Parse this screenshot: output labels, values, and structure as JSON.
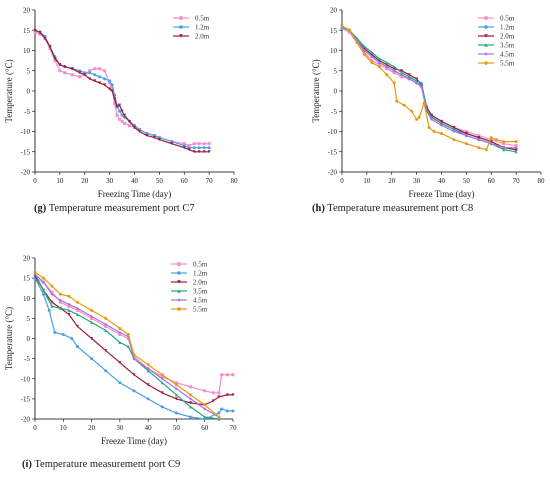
{
  "chart_data": [
    {
      "type": "line",
      "caption_tag": "(g)",
      "caption_text": "Temperature measurement port C7",
      "xlabel": "Freezing Time (day)",
      "ylabel": "Temperature (°C)",
      "xlim": [
        0,
        80
      ],
      "ylim": [
        -20,
        20
      ],
      "xticks": [
        0,
        10,
        20,
        30,
        40,
        50,
        60,
        70,
        80
      ],
      "yticks": [
        20,
        15,
        10,
        5,
        0,
        -5,
        -10,
        -15,
        -20
      ],
      "legend_position": "top-right",
      "series": [
        {
          "name": "0.5m",
          "color": "#f48fc8",
          "marker": "square",
          "x": [
            0,
            2,
            4,
            6,
            8,
            10,
            12,
            15,
            18,
            20,
            22,
            24,
            26,
            28,
            30,
            31,
            32,
            33,
            34,
            35,
            36,
            38,
            40,
            42,
            45,
            48,
            50,
            55,
            60,
            62,
            64,
            66,
            68,
            70
          ],
          "y": [
            14.5,
            14.0,
            13.0,
            10.5,
            7.5,
            5.0,
            4.5,
            4.0,
            3.5,
            4.0,
            5.0,
            5.5,
            5.5,
            5.0,
            2.0,
            0.5,
            -3.0,
            -6.0,
            -7.0,
            -7.5,
            -8.0,
            -8.5,
            -9.0,
            -9.5,
            -10.5,
            -11.0,
            -11.5,
            -12.5,
            -13.0,
            -13.5,
            -13.0,
            -13.0,
            -13.0,
            -13.0
          ]
        },
        {
          "name": "1.2m",
          "color": "#4d9fe6",
          "marker": "circle",
          "x": [
            0,
            2,
            4,
            6,
            8,
            10,
            12,
            15,
            18,
            20,
            22,
            24,
            26,
            28,
            30,
            31,
            32,
            33,
            34,
            35,
            36,
            38,
            40,
            42,
            45,
            48,
            50,
            55,
            60,
            62,
            64,
            66,
            68,
            70
          ],
          "y": [
            15.0,
            14.5,
            13.5,
            11.0,
            8.5,
            6.5,
            6.0,
            5.5,
            5.0,
            4.5,
            4.5,
            4.0,
            3.5,
            3.0,
            2.5,
            1.5,
            -1.0,
            -3.5,
            -5.0,
            -6.0,
            -6.5,
            -7.5,
            -8.5,
            -9.5,
            -10.5,
            -11.0,
            -11.5,
            -12.5,
            -13.5,
            -14.0,
            -14.0,
            -14.0,
            -14.0,
            -14.0
          ]
        },
        {
          "name": "2.0m",
          "color": "#9c1d3a",
          "marker": "triangle-down",
          "x": [
            0,
            2,
            4,
            6,
            8,
            10,
            12,
            15,
            18,
            20,
            22,
            24,
            26,
            28,
            30,
            31,
            32,
            33,
            34,
            35,
            36,
            38,
            40,
            42,
            45,
            48,
            50,
            55,
            60,
            62,
            64,
            66,
            68,
            70
          ],
          "y": [
            15.0,
            14.5,
            13.0,
            11.0,
            8.0,
            6.5,
            6.0,
            5.5,
            4.5,
            4.0,
            3.0,
            2.5,
            2.0,
            1.5,
            0.5,
            0.0,
            -2.0,
            -4.0,
            -3.5,
            -5.0,
            -6.0,
            -7.5,
            -9.0,
            -10.0,
            -11.0,
            -11.5,
            -12.0,
            -13.0,
            -14.0,
            -14.5,
            -15.0,
            -15.0,
            -15.0,
            -15.0
          ]
        }
      ]
    },
    {
      "type": "line",
      "caption_tag": "(h)",
      "caption_text": "Temperature measurement port C8",
      "xlabel": "Freeze Time (day)",
      "ylabel": "Temperature (°C)",
      "xlim": [
        0,
        80
      ],
      "ylim": [
        -20,
        20
      ],
      "xticks": [
        0,
        10,
        20,
        30,
        40,
        50,
        60,
        70,
        80
      ],
      "yticks": [
        20,
        15,
        10,
        5,
        0,
        -5,
        -10,
        -15,
        -20
      ],
      "legend_position": "top-right",
      "series": [
        {
          "name": "0.5m",
          "color": "#f48fc8",
          "marker": "square",
          "x": [
            0,
            3,
            6,
            9,
            12,
            15,
            18,
            21,
            24,
            27,
            30,
            32,
            34,
            36,
            40,
            45,
            50,
            55,
            60,
            65,
            70
          ],
          "y": [
            15.5,
            14.5,
            12.0,
            9.5,
            7.5,
            6.5,
            5.5,
            4.5,
            3.5,
            3.0,
            2.0,
            1.0,
            -4.0,
            -6.0,
            -7.5,
            -9.0,
            -10.0,
            -11.0,
            -12.0,
            -13.0,
            -13.5
          ]
        },
        {
          "name": "1.2m",
          "color": "#4d9fe6",
          "marker": "circle",
          "x": [
            0,
            3,
            6,
            9,
            12,
            15,
            18,
            21,
            24,
            27,
            30,
            32,
            34,
            36,
            40,
            45,
            50,
            55,
            60,
            65,
            70
          ],
          "y": [
            15.5,
            15.0,
            12.5,
            10.0,
            8.5,
            7.0,
            6.0,
            5.0,
            4.0,
            3.0,
            2.0,
            1.5,
            -4.5,
            -6.5,
            -8.0,
            -9.5,
            -10.5,
            -11.5,
            -12.5,
            -14.0,
            -14.5
          ]
        },
        {
          "name": "2.0m",
          "color": "#9c1d3a",
          "marker": "triangle-down",
          "x": [
            0,
            3,
            6,
            9,
            12,
            15,
            18,
            21,
            24,
            27,
            30,
            32,
            34,
            36,
            40,
            45,
            50,
            55,
            60,
            65,
            70
          ],
          "y": [
            16.0,
            15.0,
            12.5,
            10.5,
            9.0,
            7.5,
            6.5,
            5.5,
            5.0,
            4.0,
            3.0,
            1.5,
            -4.0,
            -6.0,
            -7.5,
            -9.0,
            -10.5,
            -11.5,
            -12.5,
            -14.0,
            -14.5
          ]
        },
        {
          "name": "3.5m",
          "color": "#1fa882",
          "marker": "triangle-up",
          "x": [
            0,
            3,
            6,
            9,
            12,
            15,
            18,
            21,
            24,
            27,
            30,
            32,
            34,
            36,
            40,
            45,
            50,
            55,
            60,
            65,
            70
          ],
          "y": [
            16.0,
            15.0,
            13.0,
            11.0,
            9.5,
            8.0,
            7.0,
            6.0,
            4.5,
            3.5,
            2.5,
            2.0,
            -4.5,
            -6.5,
            -8.0,
            -9.5,
            -11.0,
            -12.0,
            -13.0,
            -14.5,
            -15.0
          ]
        },
        {
          "name": "4.5m",
          "color": "#b06ee0",
          "marker": "diamond",
          "x": [
            0,
            3,
            6,
            9,
            12,
            15,
            18,
            21,
            24,
            27,
            30,
            32,
            34,
            36,
            40,
            45,
            50,
            55,
            60,
            65,
            70
          ],
          "y": [
            16.0,
            15.0,
            12.5,
            10.0,
            8.5,
            7.0,
            6.0,
            5.0,
            4.0,
            3.0,
            2.0,
            1.0,
            -5.0,
            -7.0,
            -8.5,
            -10.0,
            -11.0,
            -12.0,
            -13.0,
            -14.0,
            -14.0
          ]
        },
        {
          "name": "5.5m",
          "color": "#e19c12",
          "marker": "circle",
          "x": [
            0,
            3,
            6,
            9,
            12,
            15,
            18,
            21,
            22,
            25,
            28,
            30,
            31,
            33,
            35,
            37,
            40,
            45,
            50,
            55,
            58,
            60,
            62,
            65,
            70
          ],
          "y": [
            16.0,
            15.0,
            12.0,
            9.0,
            7.0,
            6.0,
            4.0,
            2.0,
            -2.5,
            -3.5,
            -5.0,
            -7.0,
            -6.5,
            -3.0,
            -9.0,
            -10.0,
            -10.5,
            -12.0,
            -13.0,
            -14.0,
            -14.5,
            -11.5,
            -12.0,
            -12.5,
            -12.5
          ]
        }
      ]
    },
    {
      "type": "line",
      "caption_tag": "(i)",
      "caption_text": "Temperature measurement port C9",
      "xlabel": "Freeze Time (day)",
      "ylabel": "Temperature (°C)",
      "xlim": [
        0,
        70
      ],
      "ylim": [
        -20,
        20
      ],
      "xticks": [
        0,
        10,
        20,
        30,
        40,
        50,
        60,
        70
      ],
      "yticks": [
        20,
        15,
        10,
        5,
        0,
        -5,
        -10,
        -15,
        -20
      ],
      "legend_position": "top-right",
      "series": [
        {
          "name": "0.5m",
          "color": "#f48fc8",
          "marker": "square",
          "x": [
            0,
            3,
            6,
            9,
            12,
            15,
            20,
            25,
            30,
            33,
            35,
            40,
            45,
            50,
            55,
            60,
            63,
            65,
            66,
            68,
            70
          ],
          "y": [
            15.0,
            14.0,
            11.5,
            9.0,
            8.0,
            7.0,
            5.0,
            3.0,
            1.0,
            0.0,
            -4.5,
            -7.5,
            -9.5,
            -11.0,
            -12.0,
            -13.0,
            -13.5,
            -13.5,
            -9.0,
            -9.0,
            -9.0
          ]
        },
        {
          "name": "1.2m",
          "color": "#4d9fe6",
          "marker": "circle",
          "x": [
            0,
            3,
            5,
            7,
            10,
            13,
            15,
            20,
            25,
            30,
            35,
            40,
            45,
            50,
            55,
            60,
            65,
            66,
            68,
            70
          ],
          "y": [
            15.0,
            11.0,
            7.0,
            1.5,
            1.0,
            0.0,
            -2.0,
            -5.0,
            -8.0,
            -11.0,
            -13.0,
            -15.0,
            -17.0,
            -18.5,
            -19.5,
            -20.0,
            -18.5,
            -17.5,
            -18.0,
            -18.0
          ]
        },
        {
          "name": "2.0m",
          "color": "#9c1d3a",
          "marker": "triangle-down",
          "x": [
            0,
            3,
            6,
            9,
            12,
            15,
            20,
            25,
            30,
            35,
            40,
            45,
            50,
            55,
            60,
            63,
            65,
            68,
            70
          ],
          "y": [
            15.5,
            12.0,
            9.0,
            7.5,
            6.0,
            3.0,
            0.0,
            -3.0,
            -6.0,
            -9.0,
            -11.5,
            -13.5,
            -15.0,
            -16.0,
            -16.5,
            -15.5,
            -14.5,
            -14.0,
            -14.0
          ]
        },
        {
          "name": "3.5m",
          "color": "#1fa882",
          "marker": "triangle-up",
          "x": [
            0,
            3,
            6,
            9,
            12,
            15,
            20,
            25,
            30,
            33,
            35,
            40,
            45,
            50,
            55,
            60,
            65
          ],
          "y": [
            16.0,
            12.0,
            8.0,
            7.5,
            7.0,
            6.0,
            4.0,
            2.0,
            -1.0,
            -2.0,
            -5.0,
            -8.0,
            -11.0,
            -14.0,
            -17.0,
            -19.5,
            -20.0
          ]
        },
        {
          "name": "4.5m",
          "color": "#b06ee0",
          "marker": "diamond",
          "x": [
            0,
            3,
            6,
            9,
            12,
            15,
            20,
            25,
            30,
            33,
            35,
            40,
            45,
            50,
            55,
            60,
            65
          ],
          "y": [
            16.0,
            14.0,
            11.0,
            9.5,
            8.5,
            7.5,
            5.5,
            3.5,
            1.5,
            0.5,
            -5.0,
            -7.5,
            -10.0,
            -12.5,
            -15.0,
            -17.5,
            -19.5
          ]
        },
        {
          "name": "5.5m",
          "color": "#e19c12",
          "marker": "circle",
          "x": [
            0,
            3,
            6,
            9,
            12,
            15,
            20,
            25,
            30,
            33,
            35,
            40,
            45,
            50,
            55,
            60,
            65
          ],
          "y": [
            16.5,
            15.0,
            13.0,
            11.0,
            10.5,
            9.0,
            7.0,
            5.0,
            2.5,
            1.0,
            -4.0,
            -6.5,
            -9.0,
            -11.5,
            -14.0,
            -16.5,
            -19.5
          ]
        }
      ]
    }
  ]
}
